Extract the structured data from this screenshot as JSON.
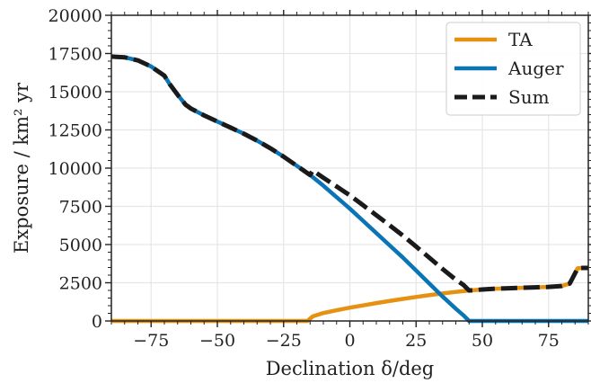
{
  "chart_data": {
    "type": "line",
    "xlabel": "Declination δ/deg",
    "ylabel": "Exposure / km² yr",
    "xlim": [
      -90,
      90
    ],
    "ylim": [
      0,
      20000
    ],
    "xticks": [
      -75,
      -50,
      -25,
      0,
      25,
      50,
      75
    ],
    "xtick_labels": [
      "−75",
      "−50",
      "−25",
      "0",
      "25",
      "50",
      "75"
    ],
    "yticks": [
      0,
      2500,
      5000,
      7500,
      10000,
      12500,
      15000,
      17500,
      20000
    ],
    "grid": true,
    "legend_position": "top-right",
    "series": [
      {
        "name": "TA",
        "color": "#e69112",
        "style": "solid",
        "x": [
          -90,
          -16,
          -14,
          -10,
          -5,
          0,
          5,
          10,
          15,
          20,
          25,
          30,
          35,
          40,
          45,
          50,
          55,
          60,
          65,
          70,
          75,
          80,
          83,
          86,
          88,
          90
        ],
        "y": [
          0,
          0,
          300,
          520,
          700,
          870,
          1020,
          1170,
          1310,
          1440,
          1570,
          1690,
          1800,
          1900,
          1990,
          2060,
          2110,
          2140,
          2170,
          2200,
          2230,
          2290,
          2450,
          3450,
          3470,
          3470
        ]
      },
      {
        "name": "Auger",
        "color": "#0b74b5",
        "style": "solid",
        "x": [
          -90,
          -85,
          -80,
          -75,
          -70,
          -68,
          -65,
          -62,
          -60,
          -55,
          -50,
          -45,
          -40,
          -35,
          -30,
          -25,
          -20,
          -15,
          -10,
          -5,
          0,
          5,
          10,
          15,
          20,
          25,
          30,
          35,
          40,
          43,
          45,
          50,
          60,
          70,
          80,
          90
        ],
        "y": [
          17300,
          17250,
          17050,
          16650,
          16050,
          15500,
          14800,
          14150,
          13900,
          13450,
          13050,
          12650,
          12250,
          11800,
          11300,
          10750,
          10150,
          9550,
          8850,
          8100,
          7350,
          6550,
          5750,
          4950,
          4150,
          3300,
          2450,
          1600,
          800,
          350,
          0,
          0,
          0,
          0,
          0,
          0
        ]
      },
      {
        "name": "Sum",
        "color": "#1a1a1a",
        "style": "dashed",
        "x": [
          -90,
          -85,
          -80,
          -75,
          -70,
          -68,
          -65,
          -62,
          -60,
          -55,
          -50,
          -45,
          -40,
          -35,
          -30,
          -25,
          -20,
          -15,
          -14,
          -10,
          -5,
          0,
          5,
          10,
          15,
          20,
          25,
          30,
          35,
          40,
          43,
          45,
          50,
          55,
          60,
          65,
          70,
          75,
          80,
          83,
          86,
          88,
          90
        ],
        "y": [
          17300,
          17250,
          17050,
          16650,
          16050,
          15500,
          14800,
          14150,
          13900,
          13450,
          13050,
          12650,
          12250,
          11800,
          11300,
          10750,
          10150,
          9550,
          9850,
          9370,
          8800,
          8220,
          7570,
          6920,
          6260,
          5590,
          4870,
          4140,
          3400,
          2700,
          2340,
          1990,
          2060,
          2110,
          2140,
          2170,
          2200,
          2230,
          2290,
          2450,
          3450,
          3470,
          3470
        ]
      }
    ]
  }
}
